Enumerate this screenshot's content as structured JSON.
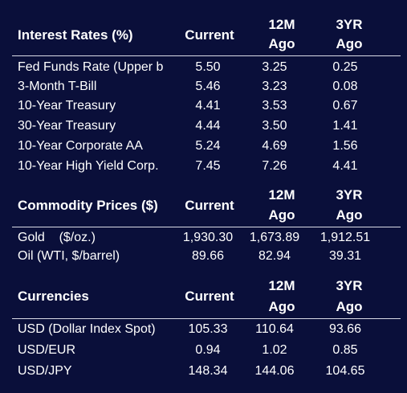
{
  "colors": {
    "background": "#0a0f3a",
    "text": "#ffffff",
    "rule": "#d9dbe6"
  },
  "interest_rates": {
    "title": "Interest Rates (%)",
    "col_current": "Current",
    "col_12m_a": "12M",
    "col_12m_b": "Ago",
    "col_3yr_a": "3YR",
    "col_3yr_b": "Ago",
    "rows": [
      {
        "label": "Fed Funds Rate (Upper b",
        "current": "5.50",
        "m12": "3.25",
        "yr3": "0.25"
      },
      {
        "label": "3-Month T-Bill",
        "current": "5.46",
        "m12": "3.23",
        "yr3": "0.08"
      },
      {
        "label": "10-Year Treasury",
        "current": "4.41",
        "m12": "3.53",
        "yr3": "0.67"
      },
      {
        "label": "30-Year Treasury",
        "current": "4.44",
        "m12": "3.50",
        "yr3": "1.41"
      },
      {
        "label": "10-Year Corporate AA",
        "current": "5.24",
        "m12": "4.69",
        "yr3": "1.56"
      },
      {
        "label": "10-Year High Yield Corp.",
        "current": "7.45",
        "m12": "7.26",
        "yr3": "4.41"
      }
    ]
  },
  "commodities": {
    "title": "Commodity Prices ($)",
    "col_current": "Current",
    "col_12m_a": "12M",
    "col_12m_b": "Ago",
    "col_3yr_a": "3YR",
    "col_3yr_b": "Ago",
    "rows": [
      {
        "label": "Gold    ($/oz.)",
        "current": "1,930.30",
        "m12": "1,673.89",
        "yr3": "1,912.51"
      },
      {
        "label": "Oil (WTI, $/barrel)",
        "current": "89.66",
        "m12": "82.94",
        "yr3": "39.31"
      }
    ]
  },
  "currencies": {
    "title": "Currencies",
    "col_current": "Current",
    "col_12m_a": "12M",
    "col_12m_b": "Ago",
    "col_3yr_a": "3YR",
    "col_3yr_b": "Ago",
    "rows": [
      {
        "label": "USD (Dollar Index Spot)",
        "current": "105.33",
        "m12": "110.64",
        "yr3": "93.66"
      },
      {
        "label": "USD/EUR",
        "current": "0.94",
        "m12": "1.02",
        "yr3": "0.85"
      },
      {
        "label": "USD/JPY",
        "current": "148.34",
        "m12": "144.06",
        "yr3": "104.65"
      }
    ]
  }
}
